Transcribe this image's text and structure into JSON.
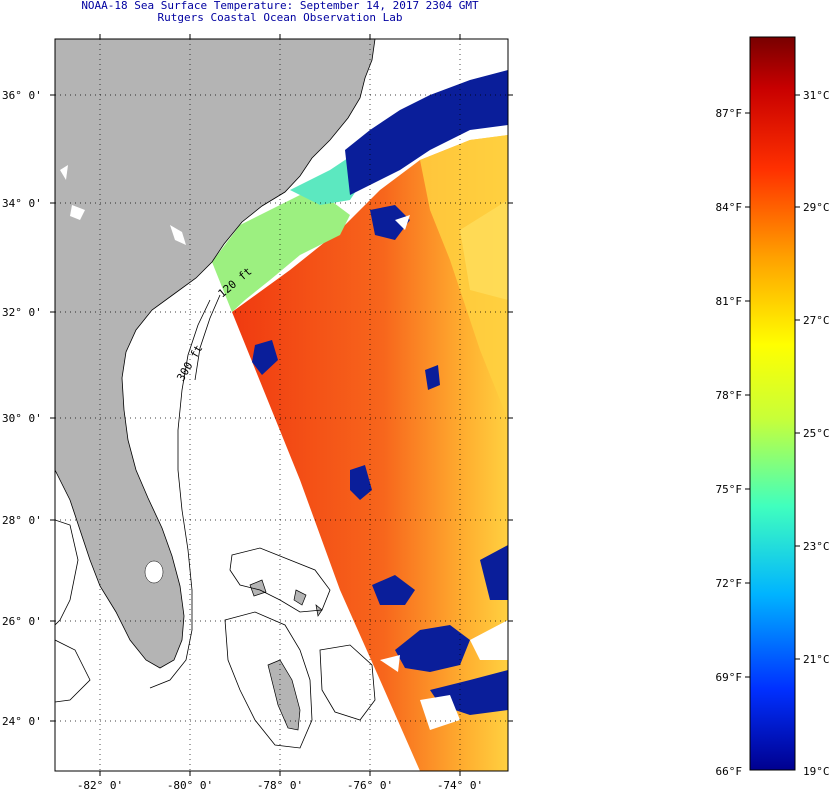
{
  "header": {
    "title": "NOAA-18 Sea Surface Temperature:  September 14, 2017 2304 GMT",
    "subtitle": "Rutgers Coastal Ocean Observation Lab"
  },
  "map": {
    "lat_labels": [
      "36° 0'",
      "34° 0'",
      "32° 0'",
      "30° 0'",
      "28° 0'",
      "26° 0'",
      "24° 0'"
    ],
    "lon_labels": [
      "-82° 0'",
      "-80° 0'",
      "-78° 0'",
      "-76° 0'",
      "-74° 0'"
    ],
    "isobath_labels": [
      "120 ft",
      "300 ft"
    ],
    "colors": {
      "land": "#b4b4b4",
      "nodata": "#ffffff",
      "cloud": "#0a1e9a",
      "ocean_main": "#f25a14"
    }
  },
  "colorbar": {
    "f_labels": [
      "87°F",
      "84°F",
      "81°F",
      "78°F",
      "75°F",
      "72°F",
      "69°F",
      "66°F"
    ],
    "c_labels": [
      "31°C",
      "29°C",
      "27°C",
      "25°C",
      "23°C",
      "21°C",
      "19°C"
    ],
    "colors": [
      "#00008f",
      "#0030ff",
      "#00b4ff",
      "#40ffbe",
      "#c8ff38",
      "#ffff00",
      "#ffa000",
      "#ff3000",
      "#c80000",
      "#780000"
    ]
  }
}
